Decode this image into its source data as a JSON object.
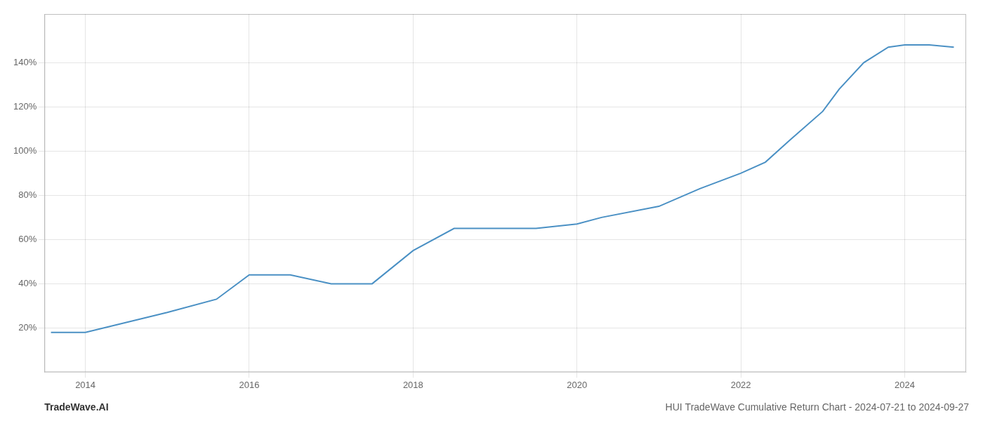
{
  "chart_data": {
    "type": "line",
    "title": "HUI TradeWave Cumulative Return Chart - 2024-07-21 to 2024-09-27",
    "annotations": [
      "TradeWave.AI"
    ],
    "x": [
      2013.58,
      2014.0,
      2015.0,
      2015.6,
      2016.0,
      2016.5,
      2017.0,
      2017.5,
      2018.0,
      2018.5,
      2019.0,
      2019.5,
      2020.0,
      2020.3,
      2021.0,
      2021.5,
      2022.0,
      2022.3,
      2022.6,
      2023.0,
      2023.2,
      2023.5,
      2023.8,
      2024.0,
      2024.3,
      2024.6
    ],
    "values": [
      18,
      18,
      27,
      33,
      44,
      44,
      40,
      40,
      55,
      65,
      65,
      65,
      67,
      70,
      75,
      83,
      90,
      95,
      105,
      118,
      128,
      140,
      147,
      148,
      148,
      147
    ],
    "color": "#4a90c4",
    "xlim": [
      2013.5,
      2024.75
    ],
    "ylim": [
      0,
      162
    ],
    "xticks": [
      2014,
      2016,
      2018,
      2020,
      2022,
      2024
    ],
    "yticks": [
      {
        "value": 20,
        "label": "20%"
      },
      {
        "value": 40,
        "label": "40%"
      },
      {
        "value": 60,
        "label": "60%"
      },
      {
        "value": 80,
        "label": "80%"
      },
      {
        "value": 100,
        "label": "100%"
      },
      {
        "value": 120,
        "label": "120%"
      },
      {
        "value": 140,
        "label": "140%"
      }
    ],
    "grid": true
  }
}
